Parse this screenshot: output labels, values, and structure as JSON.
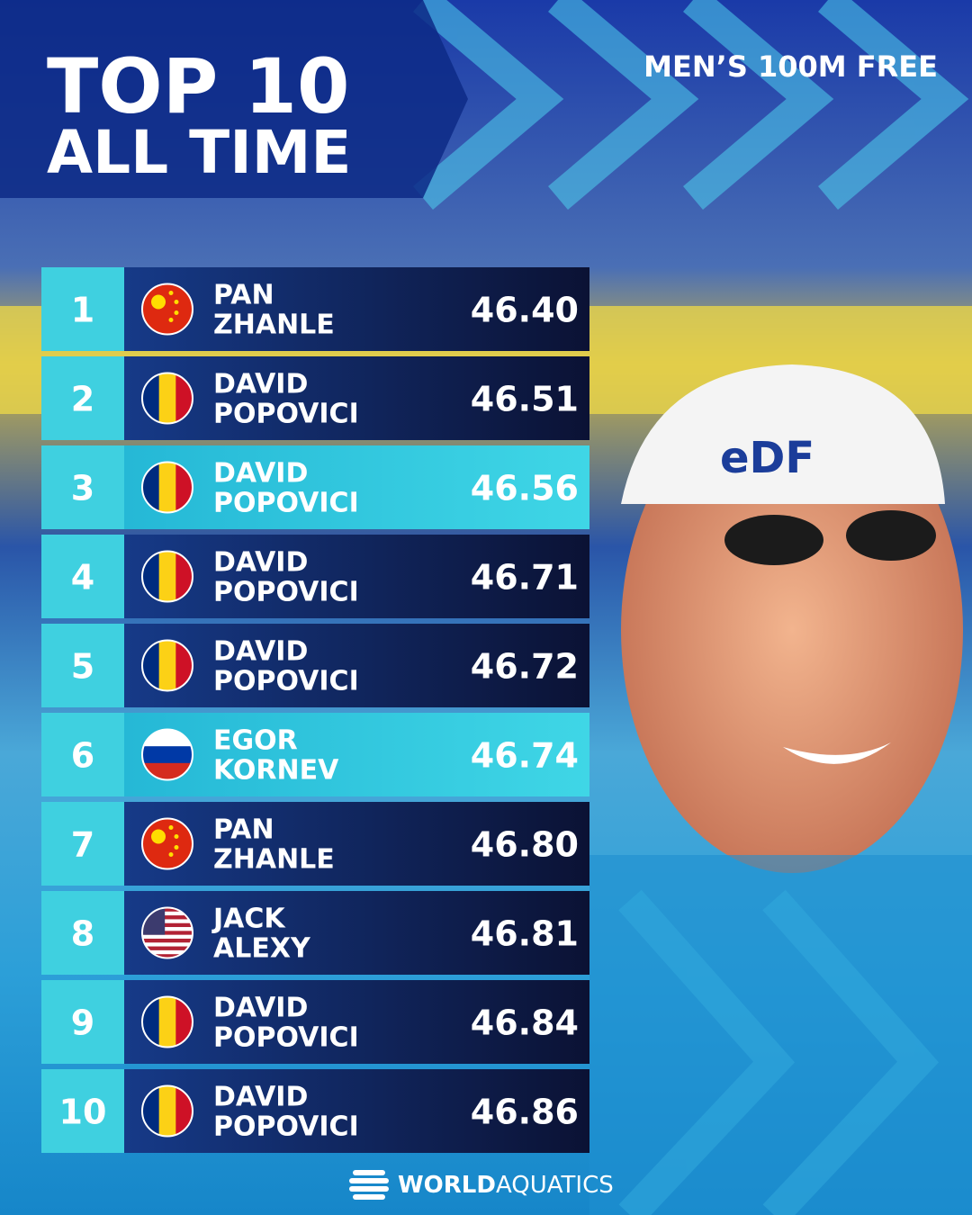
{
  "header": {
    "title_line1": "TOP 10",
    "title_line2": "ALL TIME",
    "subtitle": "MEN’S 100M FREE"
  },
  "table": {
    "rows": [
      {
        "rank": "1",
        "first": "PAN",
        "last": "ZHANLE",
        "time": "46.40"
      },
      {
        "rank": "2",
        "first": "DAVID",
        "last": "POPOVICI",
        "time": "46.51"
      },
      {
        "rank": "3",
        "first": "DAVID",
        "last": "POPOVICI",
        "time": "46.56"
      },
      {
        "rank": "4",
        "first": "DAVID",
        "last": "POPOVICI",
        "time": "46.71"
      },
      {
        "rank": "5",
        "first": "DAVID",
        "last": "POPOVICI",
        "time": "46.72"
      },
      {
        "rank": "6",
        "first": "EGOR",
        "last": "KORNEV",
        "time": "46.74"
      },
      {
        "rank": "7",
        "first": "PAN",
        "last": "ZHANLE",
        "time": "46.80"
      },
      {
        "rank": "8",
        "first": "JACK",
        "last": "ALEXY",
        "time": "46.81"
      },
      {
        "rank": "9",
        "first": "DAVID",
        "last": "POPOVICI",
        "time": "46.84"
      },
      {
        "rank": "10",
        "first": "DAVID",
        "last": "POPOVICI",
        "time": "46.86"
      }
    ]
  },
  "footer": {
    "brand_bold": "WORLD",
    "brand_light": "AQUATICS"
  }
}
